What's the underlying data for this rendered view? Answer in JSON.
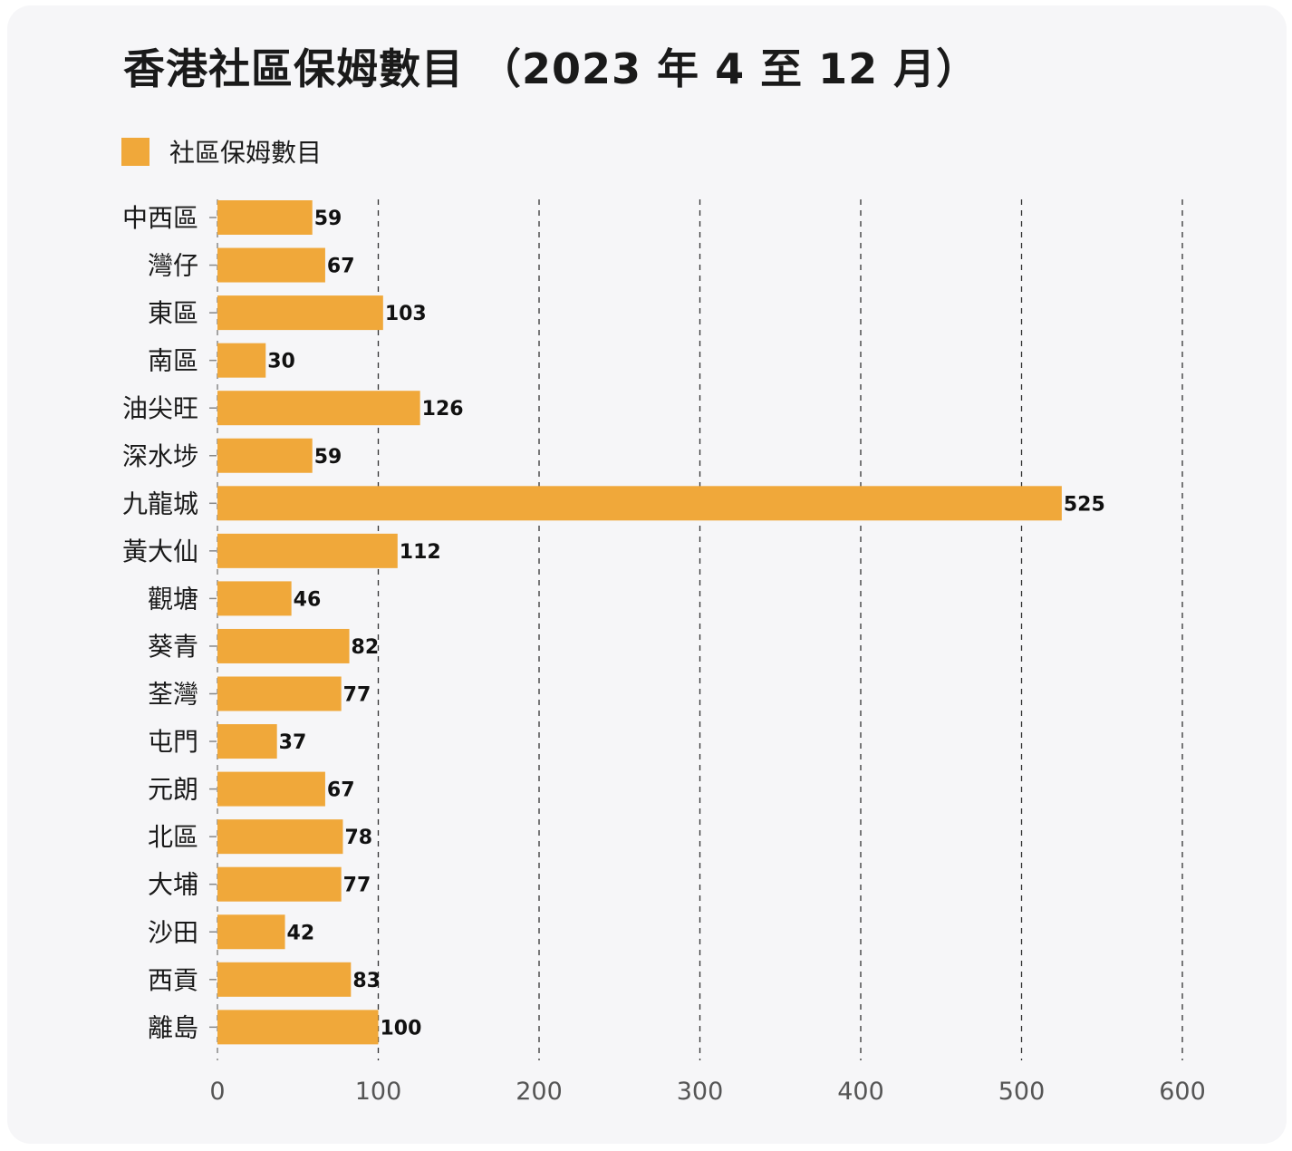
{
  "chart_data": {
    "type": "bar",
    "orientation": "horizontal",
    "title": "香港社區保姆數目 （2023 年 4 至 12 月）",
    "legend": {
      "label": "社區保姆數目",
      "placement": "top-left"
    },
    "categories": [
      "中西區",
      "灣仔",
      "東區",
      "南區",
      "油尖旺",
      "深水埗",
      "九龍城",
      "黃大仙",
      "觀塘",
      "葵青",
      "荃灣",
      "屯門",
      "元朗",
      "北區",
      "大埔",
      "沙田",
      "西貢",
      "離島"
    ],
    "series": [
      {
        "name": "社區保姆數目",
        "values": [
          59,
          67,
          103,
          30,
          126,
          59,
          525,
          112,
          46,
          82,
          77,
          37,
          67,
          78,
          77,
          42,
          83,
          100
        ]
      }
    ],
    "xlim": [
      0,
      600
    ],
    "xticks": [
      0,
      100,
      200,
      300,
      400,
      500,
      600
    ],
    "grid": "vertical dashed",
    "data_labels": true
  },
  "colors": {
    "bar": "#f0a83a",
    "background": "#f6f6f8",
    "grid": "#333333",
    "axis": "#888888"
  }
}
